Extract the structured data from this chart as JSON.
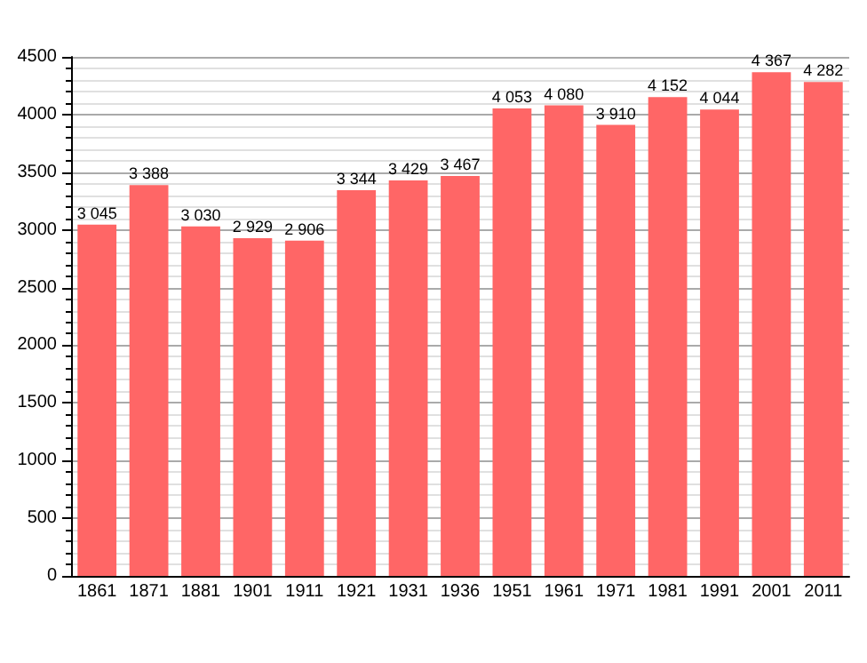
{
  "chart_data": {
    "type": "bar",
    "categories": [
      "1861",
      "1871",
      "1881",
      "1901",
      "1911",
      "1921",
      "1931",
      "1936",
      "1951",
      "1961",
      "1971",
      "1981",
      "1991",
      "2001",
      "2011"
    ],
    "values": [
      3045,
      3388,
      3030,
      2929,
      2906,
      3344,
      3429,
      3467,
      4053,
      4080,
      3910,
      4152,
      4044,
      4367,
      4282
    ],
    "value_labels": [
      "3 045",
      "3 388",
      "3 030",
      "2 929",
      "2 906",
      "3 344",
      "3 429",
      "3 467",
      "4 053",
      "4 080",
      "3 910",
      "4 152",
      "4 044",
      "4 367",
      "4 282"
    ],
    "color": "#ff6666",
    "ylim": [
      0,
      4500
    ],
    "yticks": [
      0,
      500,
      1000,
      1500,
      2000,
      2500,
      3000,
      3500,
      4000,
      4500
    ],
    "grid": "y"
  }
}
